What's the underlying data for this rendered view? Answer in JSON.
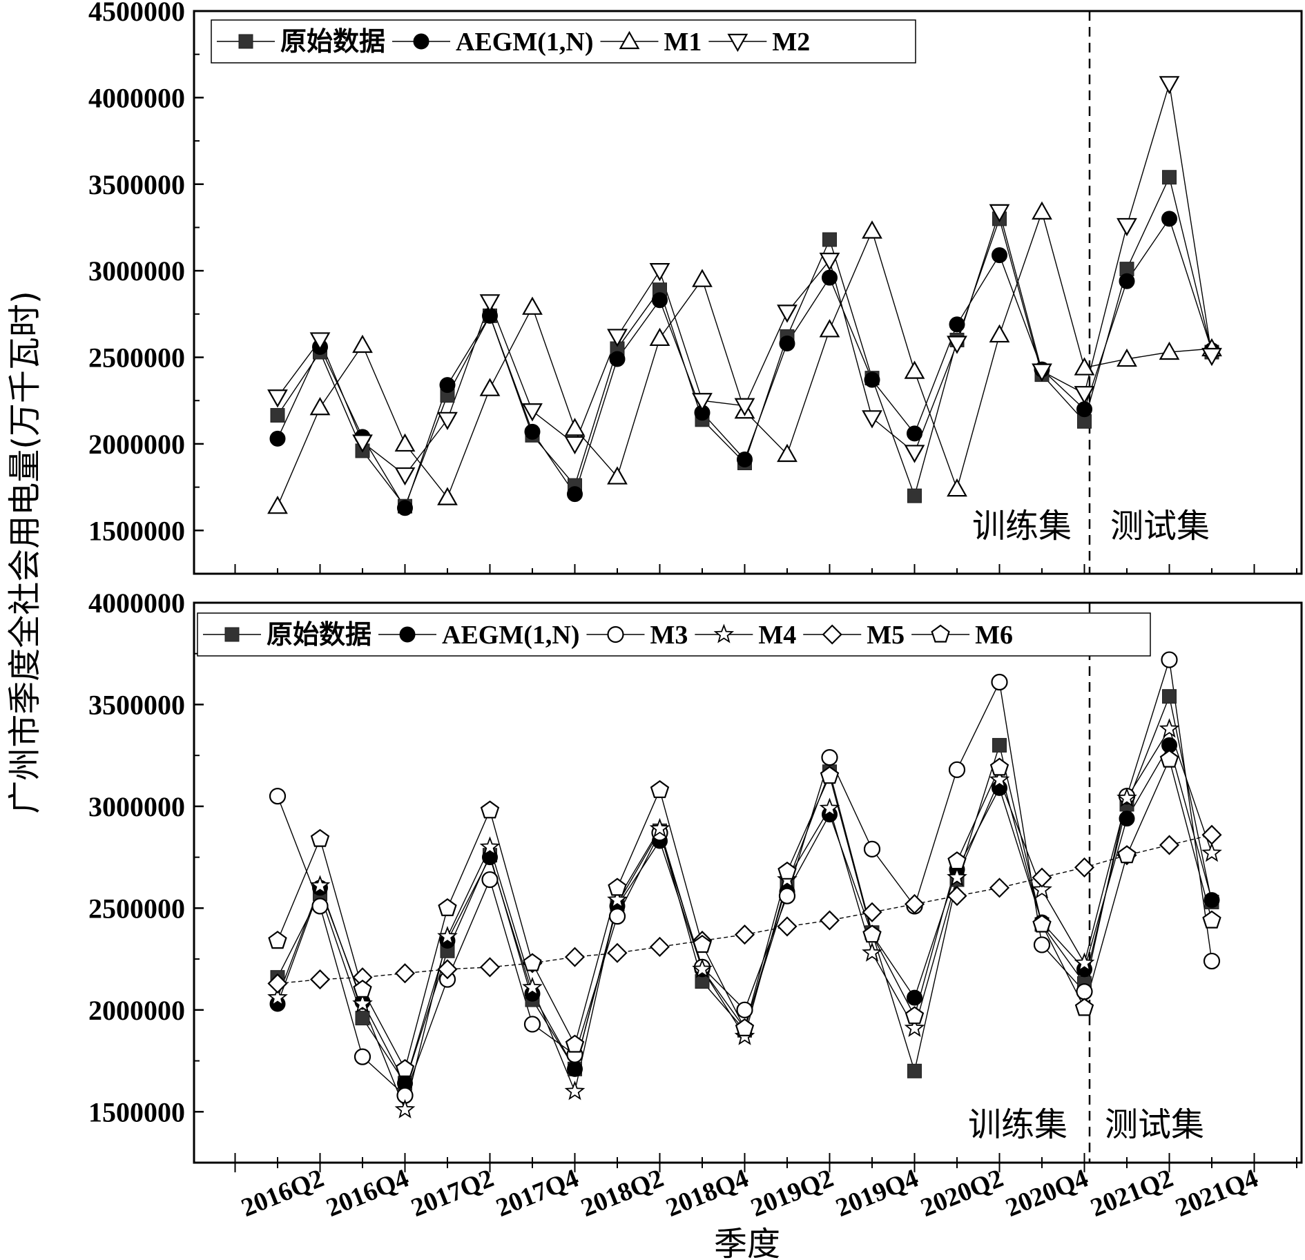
{
  "chart_data": [
    {
      "type": "line",
      "panel": "top",
      "ylabel": "广州市季度全社会用电量(万千瓦时)",
      "xlabel": "季度",
      "ylim": [
        1250000,
        4500000
      ],
      "yticks": [
        1500000,
        2000000,
        2500000,
        3000000,
        3500000,
        4000000,
        4500000
      ],
      "ytick_labels": [
        "1500000",
        "2000000",
        "2500000",
        "3000000",
        "3500000",
        "4000000",
        "4500000"
      ],
      "categories": [
        "2016Q1",
        "2016Q2",
        "2016Q3",
        "2016Q4",
        "2017Q1",
        "2017Q2",
        "2017Q3",
        "2017Q4",
        "2018Q1",
        "2018Q2",
        "2018Q3",
        "2018Q4",
        "2019Q1",
        "2019Q2",
        "2019Q3",
        "2019Q4",
        "2020Q1",
        "2020Q2",
        "2020Q3",
        "2020Q4",
        "2021Q1",
        "2021Q2",
        "2021Q3"
      ],
      "split_after": "2020Q4",
      "region_labels": {
        "train": "训练集",
        "test": "测试集"
      },
      "legend_position": "top-left",
      "series": [
        {
          "name": "原始数据",
          "marker": "square-filled",
          "values": [
            2165000,
            2530000,
            1960000,
            1640000,
            2280000,
            2740000,
            2050000,
            1760000,
            2550000,
            2890000,
            2140000,
            1890000,
            2620000,
            3180000,
            2380000,
            1700000,
            2600000,
            3300000,
            2400000,
            2130000,
            3010000,
            3540000,
            2530000
          ]
        },
        {
          "name": "AEGM(1,N)",
          "marker": "circle-filled",
          "values": [
            2030000,
            2560000,
            2040000,
            1630000,
            2340000,
            2740000,
            2070000,
            1710000,
            2490000,
            2830000,
            2180000,
            1910000,
            2580000,
            2960000,
            2370000,
            2060000,
            2690000,
            3090000,
            2430000,
            2200000,
            2940000,
            3300000,
            2540000
          ]
        },
        {
          "name": "M1",
          "marker": "triangle-up-open",
          "values": [
            1640000,
            2210000,
            2570000,
            2000000,
            1690000,
            2320000,
            2790000,
            2090000,
            1810000,
            2610000,
            2950000,
            2190000,
            1940000,
            2660000,
            3230000,
            2420000,
            1740000,
            2630000,
            3340000,
            2440000,
            2490000,
            2530000,
            2550000
          ]
        },
        {
          "name": "M2",
          "marker": "triangle-down-open",
          "values": [
            2270000,
            2600000,
            2010000,
            1820000,
            2140000,
            2820000,
            2190000,
            2000000,
            2620000,
            3000000,
            2250000,
            2220000,
            2760000,
            3060000,
            2150000,
            1950000,
            2580000,
            3340000,
            2420000,
            2290000,
            3260000,
            4080000,
            2510000
          ]
        }
      ]
    },
    {
      "type": "line",
      "panel": "bottom",
      "ylabel": "广州市季度全社会用电量(万千瓦时)",
      "xlabel": "季度",
      "ylim": [
        1250000,
        4000000
      ],
      "yticks": [
        1500000,
        2000000,
        2500000,
        3000000,
        3500000,
        4000000
      ],
      "ytick_labels": [
        "1500000",
        "2000000",
        "2500000",
        "3000000",
        "3500000",
        "4000000"
      ],
      "categories": [
        "2016Q1",
        "2016Q2",
        "2016Q3",
        "2016Q4",
        "2017Q1",
        "2017Q2",
        "2017Q3",
        "2017Q4",
        "2018Q1",
        "2018Q2",
        "2018Q3",
        "2018Q4",
        "2019Q1",
        "2019Q2",
        "2019Q3",
        "2019Q4",
        "2020Q1",
        "2020Q2",
        "2020Q3",
        "2020Q4",
        "2021Q1",
        "2021Q2",
        "2021Q3"
      ],
      "x_tick_labels": [
        "2016Q2",
        "2016Q4",
        "2017Q2",
        "2017Q4",
        "2018Q2",
        "2018Q4",
        "2019Q2",
        "2019Q4",
        "2020Q2",
        "2020Q4",
        "2021Q2",
        "2021Q4"
      ],
      "split_after": "2020Q4",
      "region_labels": {
        "train": "训练集",
        "test": "测试集"
      },
      "legend_position": "top-left",
      "series": [
        {
          "name": "原始数据",
          "marker": "square-filled",
          "values": [
            2160000,
            2570000,
            1960000,
            1640000,
            2290000,
            2760000,
            2050000,
            1710000,
            2520000,
            2880000,
            2140000,
            1900000,
            2620000,
            3170000,
            2380000,
            1700000,
            2640000,
            3300000,
            2420000,
            2130000,
            3010000,
            3540000,
            2530000
          ]
        },
        {
          "name": "AEGM(1,N)",
          "marker": "circle-filled",
          "values": [
            2030000,
            2600000,
            2040000,
            1640000,
            2340000,
            2750000,
            2080000,
            1710000,
            2510000,
            2830000,
            2200000,
            1910000,
            2580000,
            2960000,
            2370000,
            2060000,
            2690000,
            3090000,
            2430000,
            2200000,
            2940000,
            3300000,
            2540000
          ]
        },
        {
          "name": "M3",
          "marker": "circle-open",
          "values": [
            3050000,
            2510000,
            1770000,
            1580000,
            2150000,
            2640000,
            1930000,
            1780000,
            2460000,
            2870000,
            2210000,
            2000000,
            2560000,
            3240000,
            2790000,
            2510000,
            3180000,
            3610000,
            2320000,
            2090000,
            3050000,
            3720000,
            2240000
          ]
        },
        {
          "name": "M4",
          "marker": "star-open",
          "values": [
            2060000,
            2610000,
            2030000,
            1510000,
            2360000,
            2800000,
            2110000,
            1600000,
            2540000,
            2890000,
            2200000,
            1870000,
            2640000,
            2990000,
            2280000,
            1910000,
            2650000,
            3130000,
            2590000,
            2230000,
            3040000,
            3380000,
            2770000
          ]
        },
        {
          "name": "M5",
          "marker": "diamond-open",
          "values": [
            2130000,
            2150000,
            2160000,
            2180000,
            2200000,
            2210000,
            2230000,
            2260000,
            2280000,
            2310000,
            2340000,
            2370000,
            2410000,
            2440000,
            2480000,
            2520000,
            2560000,
            2600000,
            2650000,
            2700000,
            2760000,
            2810000,
            2860000
          ]
        },
        {
          "name": "M6",
          "marker": "pentagon-open",
          "values": [
            2340000,
            2840000,
            2100000,
            1710000,
            2500000,
            2980000,
            2230000,
            1830000,
            2600000,
            3080000,
            2320000,
            1910000,
            2680000,
            3150000,
            2370000,
            1970000,
            2730000,
            3190000,
            2420000,
            2010000,
            2760000,
            3230000,
            2440000
          ]
        }
      ]
    }
  ]
}
